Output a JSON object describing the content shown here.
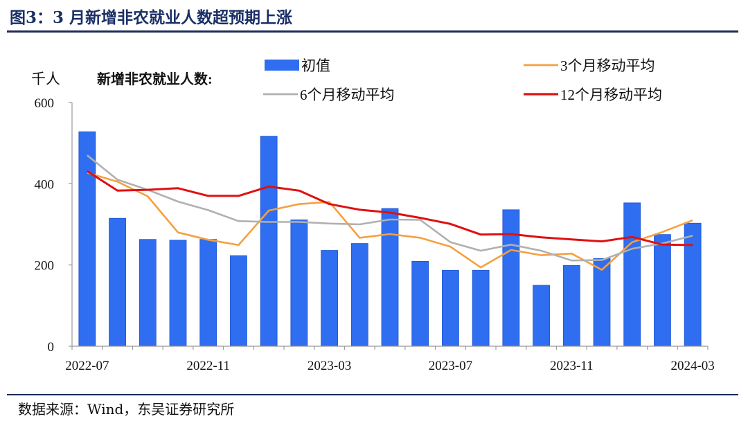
{
  "title": "图3：3 月新增非农就业人数超预期上涨",
  "source": "数据来源：Wind，东吴证券研究所",
  "chart_data": {
    "type": "bar",
    "unit_label": "千人",
    "subtitle": "新增非农就业人数:",
    "ylim": [
      0,
      600
    ],
    "y_ticks": [
      0,
      200,
      400,
      600
    ],
    "x_tick_labels": [
      "2022-07",
      "2022-11",
      "2023-03",
      "2023-07",
      "2023-11",
      "2024-03"
    ],
    "x_tick_indices": [
      0,
      4,
      8,
      12,
      16,
      20
    ],
    "categories": [
      "2022-07",
      "2022-08",
      "2022-09",
      "2022-10",
      "2022-11",
      "2022-12",
      "2023-01",
      "2023-02",
      "2023-03",
      "2023-04",
      "2023-05",
      "2023-06",
      "2023-07",
      "2023-08",
      "2023-09",
      "2023-10",
      "2023-11",
      "2023-12",
      "2024-01",
      "2024-02",
      "2024-03"
    ],
    "grid": false,
    "legend_position": "top",
    "series": [
      {
        "name": "初值",
        "type": "bar",
        "color": "#2f6ef0",
        "values": [
          528,
          315,
          263,
          261,
          263,
          223,
          517,
          311,
          236,
          253,
          339,
          209,
          187,
          187,
          336,
          150,
          199,
          216,
          353,
          275,
          303
        ]
      },
      {
        "name": "3个月移动平均",
        "type": "line",
        "color": "#f5a040",
        "values": [
          427,
          405,
          369,
          280,
          262,
          249,
          334,
          350,
          355,
          267,
          276,
          267,
          245,
          194,
          237,
          224,
          228,
          188,
          256,
          281,
          310
        ]
      },
      {
        "name": "6个月移动平均",
        "type": "line",
        "color": "#b0b0b0",
        "values": [
          470,
          410,
          385,
          356,
          335,
          308,
          306,
          306,
          302,
          300,
          312,
          311,
          256,
          235,
          250,
          235,
          211,
          212,
          240,
          253,
          272
        ]
      },
      {
        "name": "12个月移动平均",
        "type": "line",
        "color": "#e01010",
        "values": [
          431,
          383,
          385,
          389,
          370,
          370,
          393,
          383,
          350,
          336,
          329,
          316,
          301,
          275,
          276,
          268,
          263,
          258,
          269,
          250,
          249
        ]
      }
    ]
  }
}
